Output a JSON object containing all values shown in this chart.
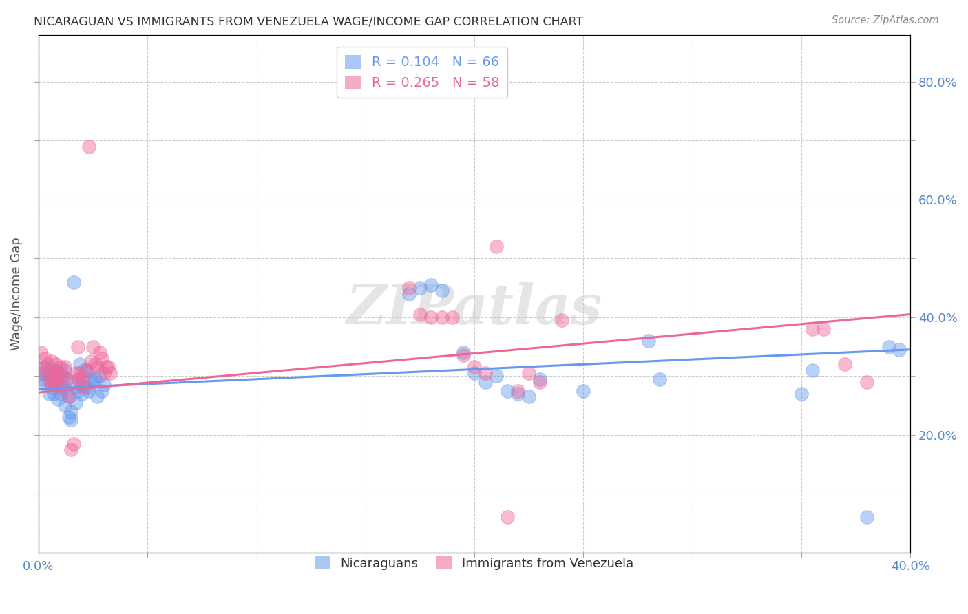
{
  "title": "NICARAGUAN VS IMMIGRANTS FROM VENEZUELA WAGE/INCOME GAP CORRELATION CHART",
  "source": "Source: ZipAtlas.com",
  "ylabel": "Wage/Income Gap",
  "xlim": [
    0.0,
    0.4
  ],
  "ylim": [
    0.0,
    0.88
  ],
  "xticks": [
    0.0,
    0.05,
    0.1,
    0.15,
    0.2,
    0.25,
    0.3,
    0.35,
    0.4
  ],
  "yticks": [
    0.0,
    0.1,
    0.2,
    0.3,
    0.4,
    0.5,
    0.6,
    0.7,
    0.8
  ],
  "legend_r1": "R = 0.104   N = 66",
  "legend_r2": "R = 0.265   N = 58",
  "legend_label_1": "Nicaraguans",
  "legend_label_2": "Immigrants from Venezuela",
  "color_blue": "#6699ee",
  "color_pink": "#ee6699",
  "blue_points": [
    [
      0.001,
      0.305
    ],
    [
      0.002,
      0.295
    ],
    [
      0.003,
      0.285
    ],
    [
      0.003,
      0.315
    ],
    [
      0.004,
      0.3
    ],
    [
      0.005,
      0.27
    ],
    [
      0.005,
      0.305
    ],
    [
      0.006,
      0.31
    ],
    [
      0.006,
      0.28
    ],
    [
      0.007,
      0.3
    ],
    [
      0.007,
      0.27
    ],
    [
      0.008,
      0.285
    ],
    [
      0.008,
      0.31
    ],
    [
      0.009,
      0.295
    ],
    [
      0.009,
      0.26
    ],
    [
      0.01,
      0.305
    ],
    [
      0.01,
      0.27
    ],
    [
      0.011,
      0.295
    ],
    [
      0.011,
      0.28
    ],
    [
      0.012,
      0.25
    ],
    [
      0.012,
      0.31
    ],
    [
      0.013,
      0.295
    ],
    [
      0.013,
      0.275
    ],
    [
      0.014,
      0.23
    ],
    [
      0.014,
      0.265
    ],
    [
      0.015,
      0.225
    ],
    [
      0.015,
      0.24
    ],
    [
      0.016,
      0.46
    ],
    [
      0.017,
      0.28
    ],
    [
      0.017,
      0.255
    ],
    [
      0.018,
      0.275
    ],
    [
      0.019,
      0.295
    ],
    [
      0.019,
      0.32
    ],
    [
      0.02,
      0.285
    ],
    [
      0.02,
      0.27
    ],
    [
      0.021,
      0.31
    ],
    [
      0.022,
      0.31
    ],
    [
      0.022,
      0.28
    ],
    [
      0.023,
      0.275
    ],
    [
      0.024,
      0.295
    ],
    [
      0.025,
      0.29
    ],
    [
      0.026,
      0.295
    ],
    [
      0.027,
      0.265
    ],
    [
      0.028,
      0.3
    ],
    [
      0.029,
      0.275
    ],
    [
      0.03,
      0.285
    ],
    [
      0.17,
      0.44
    ],
    [
      0.175,
      0.45
    ],
    [
      0.18,
      0.455
    ],
    [
      0.185,
      0.445
    ],
    [
      0.195,
      0.34
    ],
    [
      0.2,
      0.305
    ],
    [
      0.205,
      0.29
    ],
    [
      0.21,
      0.3
    ],
    [
      0.215,
      0.275
    ],
    [
      0.22,
      0.27
    ],
    [
      0.225,
      0.265
    ],
    [
      0.23,
      0.295
    ],
    [
      0.25,
      0.275
    ],
    [
      0.28,
      0.36
    ],
    [
      0.285,
      0.295
    ],
    [
      0.35,
      0.27
    ],
    [
      0.355,
      0.31
    ],
    [
      0.38,
      0.06
    ],
    [
      0.39,
      0.35
    ],
    [
      0.395,
      0.345
    ]
  ],
  "pink_points": [
    [
      0.001,
      0.34
    ],
    [
      0.002,
      0.315
    ],
    [
      0.003,
      0.305
    ],
    [
      0.003,
      0.33
    ],
    [
      0.004,
      0.32
    ],
    [
      0.005,
      0.29
    ],
    [
      0.005,
      0.305
    ],
    [
      0.006,
      0.325
    ],
    [
      0.006,
      0.29
    ],
    [
      0.007,
      0.305
    ],
    [
      0.007,
      0.285
    ],
    [
      0.008,
      0.32
    ],
    [
      0.008,
      0.295
    ],
    [
      0.009,
      0.305
    ],
    [
      0.009,
      0.28
    ],
    [
      0.01,
      0.315
    ],
    [
      0.011,
      0.3
    ],
    [
      0.012,
      0.315
    ],
    [
      0.013,
      0.295
    ],
    [
      0.014,
      0.265
    ],
    [
      0.015,
      0.175
    ],
    [
      0.016,
      0.185
    ],
    [
      0.017,
      0.305
    ],
    [
      0.018,
      0.295
    ],
    [
      0.018,
      0.35
    ],
    [
      0.019,
      0.305
    ],
    [
      0.02,
      0.295
    ],
    [
      0.021,
      0.28
    ],
    [
      0.022,
      0.31
    ],
    [
      0.023,
      0.69
    ],
    [
      0.024,
      0.325
    ],
    [
      0.025,
      0.35
    ],
    [
      0.026,
      0.32
    ],
    [
      0.027,
      0.315
    ],
    [
      0.028,
      0.34
    ],
    [
      0.029,
      0.33
    ],
    [
      0.03,
      0.305
    ],
    [
      0.031,
      0.315
    ],
    [
      0.032,
      0.315
    ],
    [
      0.033,
      0.305
    ],
    [
      0.17,
      0.45
    ],
    [
      0.175,
      0.405
    ],
    [
      0.18,
      0.4
    ],
    [
      0.185,
      0.4
    ],
    [
      0.19,
      0.4
    ],
    [
      0.195,
      0.335
    ],
    [
      0.2,
      0.315
    ],
    [
      0.205,
      0.305
    ],
    [
      0.21,
      0.52
    ],
    [
      0.215,
      0.06
    ],
    [
      0.22,
      0.275
    ],
    [
      0.225,
      0.305
    ],
    [
      0.23,
      0.29
    ],
    [
      0.24,
      0.395
    ],
    [
      0.355,
      0.38
    ],
    [
      0.36,
      0.38
    ],
    [
      0.37,
      0.32
    ],
    [
      0.38,
      0.29
    ]
  ],
  "blue_line": [
    0.0,
    0.278,
    0.4,
    0.345
  ],
  "pink_line": [
    0.0,
    0.272,
    0.4,
    0.405
  ],
  "watermark": "ZIPatlas",
  "background_color": "#ffffff",
  "grid_color": "#cccccc"
}
